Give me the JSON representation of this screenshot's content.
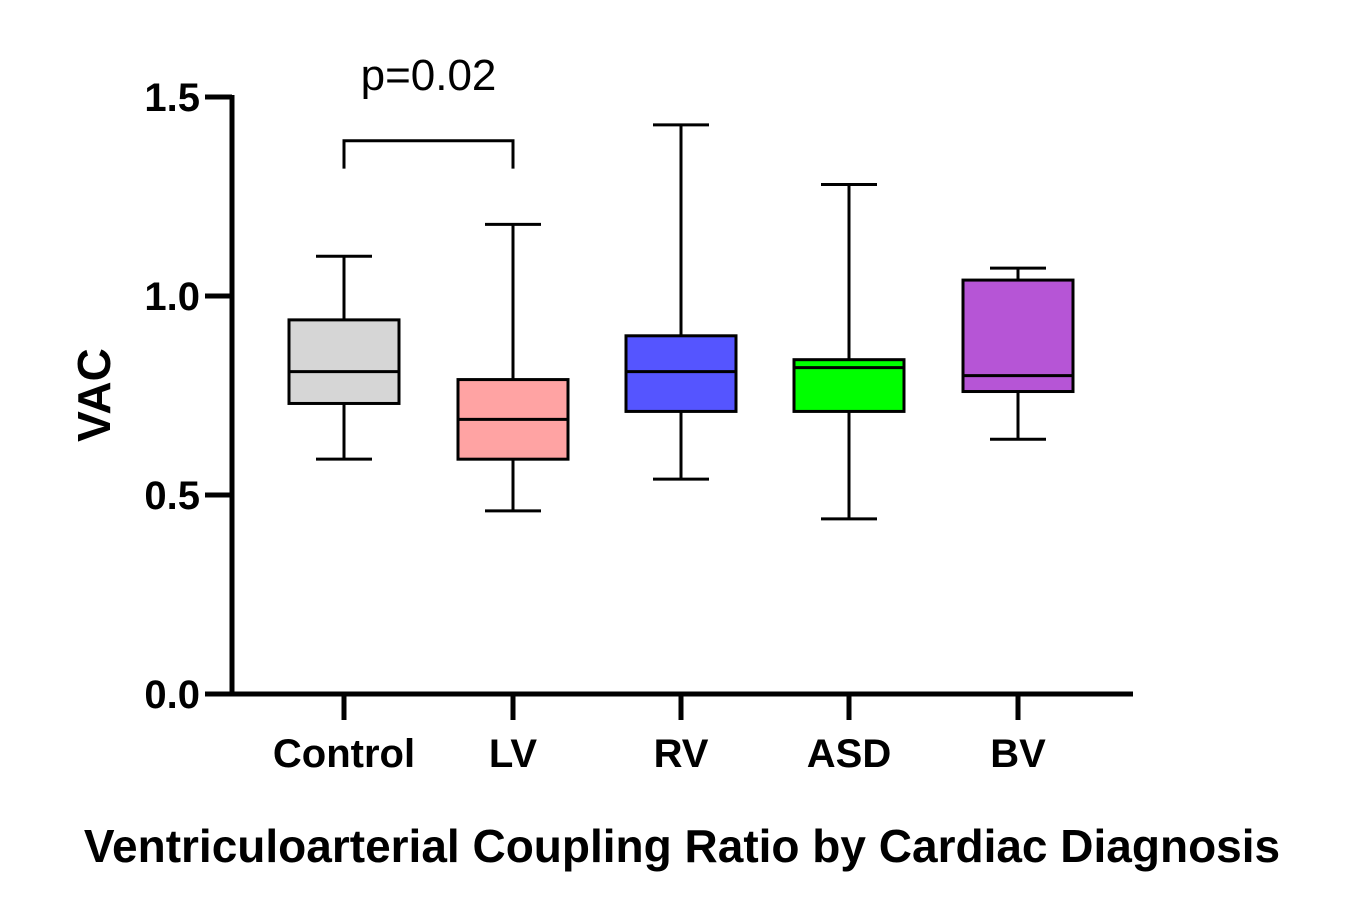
{
  "chart_data": {
    "type": "box",
    "title": "",
    "xlabel": "Ventriculoarterial Coupling Ratio by Cardiac Diagnosis",
    "ylabel": "VAC",
    "ylim": [
      0,
      1.5
    ],
    "yticks": [
      0.0,
      0.5,
      1.0,
      1.5
    ],
    "ytick_labels": [
      "0.0",
      "0.5",
      "1.0",
      "1.5"
    ],
    "grid": false,
    "categories": [
      "Control",
      "LV",
      "RV",
      "ASD",
      "BV"
    ],
    "boxes": [
      {
        "name": "Control",
        "min": 0.59,
        "q1": 0.73,
        "median": 0.81,
        "q3": 0.94,
        "max": 1.1,
        "color": "#d6d6d6"
      },
      {
        "name": "LV",
        "min": 0.46,
        "q1": 0.59,
        "median": 0.69,
        "q3": 0.79,
        "max": 1.18,
        "color": "#ffa3a3"
      },
      {
        "name": "RV",
        "min": 0.54,
        "q1": 0.71,
        "median": 0.81,
        "q3": 0.9,
        "max": 1.43,
        "color": "#5555ff"
      },
      {
        "name": "ASD",
        "min": 0.44,
        "q1": 0.71,
        "median": 0.82,
        "q3": 0.84,
        "max": 1.28,
        "color": "#00ff00"
      },
      {
        "name": "BV",
        "min": 0.64,
        "q1": 0.76,
        "median": 0.8,
        "q3": 1.04,
        "max": 1.07,
        "color": "#b655d6"
      }
    ],
    "annotations": [
      {
        "text": "p=0.02",
        "from": "Control",
        "to": "LV",
        "bracket_y": 1.39,
        "bracket_drop": 0.07
      }
    ]
  }
}
